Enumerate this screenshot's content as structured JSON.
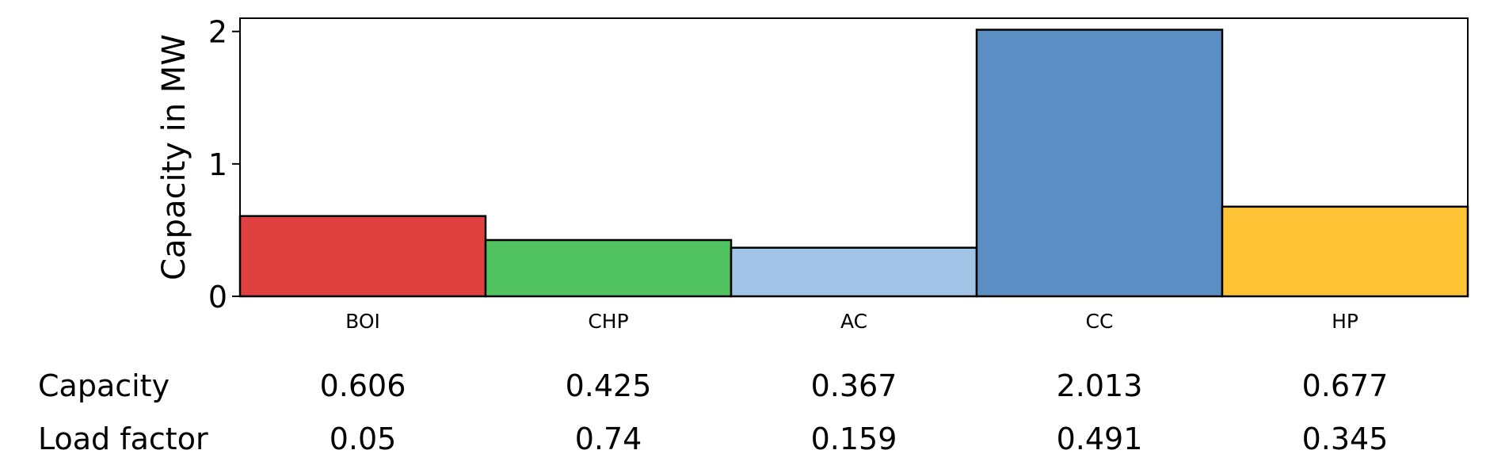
{
  "chart_data": {
    "type": "bar",
    "title": "",
    "xlabel": "",
    "ylabel": "Capacity in MW",
    "ylim": [
      0,
      2.1
    ],
    "yticks": [
      0,
      1,
      2
    ],
    "grid": false,
    "categories": [
      "BOI",
      "CHP",
      "AC",
      "CC",
      "HP"
    ],
    "values": [
      0.606,
      0.425,
      0.367,
      2.013,
      0.677
    ],
    "colors": [
      "#e04040",
      "#50c25f",
      "#a2c4e6",
      "#5b8fc3",
      "#ffc435"
    ],
    "table": {
      "rows": [
        {
          "label": "Capacity",
          "values": [
            "0.606",
            "0.425",
            "0.367",
            "2.013",
            "0.677"
          ]
        },
        {
          "label": "Load factor",
          "values": [
            "0.05",
            "0.74",
            "0.159",
            "0.491",
            "0.345"
          ]
        }
      ]
    }
  }
}
